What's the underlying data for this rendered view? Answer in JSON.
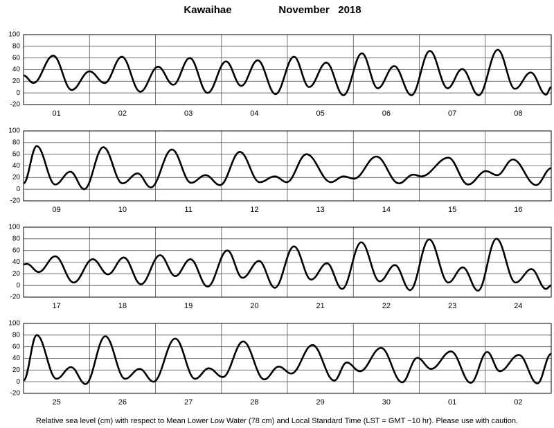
{
  "title": "Kawaihae",
  "title_date": "November   2018",
  "footnote": "Relative sea level (cm) with respect to Mean Lower Low Water (78 cm) and Local Standard Time (LST = GMT −10 hr). Please use with caution.",
  "chart_data": [
    {
      "type": "line",
      "categories": [
        "01",
        "02",
        "03",
        "04",
        "05",
        "06",
        "07",
        "08"
      ],
      "x": [
        0,
        0.15,
        0.45,
        0.73,
        1.0,
        1.23,
        1.49,
        1.77,
        2.04,
        2.27,
        2.52,
        2.79,
        3.07,
        3.3,
        3.55,
        3.82,
        4.1,
        4.33,
        4.59,
        4.85,
        5.13,
        5.37,
        5.62,
        5.88,
        6.16,
        6.43,
        6.65,
        6.9,
        7.19,
        7.45,
        7.69,
        7.92,
        8.0
      ],
      "series": [
        {
          "color": "#000000",
          "values": [
            30,
            17,
            64,
            5,
            37,
            17,
            62,
            2,
            45,
            14,
            60,
            0,
            54,
            12,
            56,
            -2,
            62,
            10,
            52,
            -4,
            68,
            8,
            46,
            -4,
            72,
            8,
            41,
            -4,
            74,
            7,
            35,
            -3,
            10
          ]
        }
      ],
      "xlim": [
        0,
        8
      ],
      "ylim": [
        -20,
        100
      ],
      "yticks": [
        -20,
        0,
        20,
        40,
        60,
        80,
        100
      ],
      "grid": true
    },
    {
      "type": "line",
      "categories": [
        "09",
        "10",
        "11",
        "12",
        "13",
        "14",
        "15",
        "16"
      ],
      "x": [
        0,
        0.2,
        0.48,
        0.71,
        0.92,
        1.21,
        1.5,
        1.73,
        1.93,
        2.25,
        2.54,
        2.76,
        2.98,
        3.28,
        3.58,
        3.81,
        3.99,
        4.29,
        4.66,
        4.85,
        5.01,
        5.35,
        5.69,
        5.91,
        6.03,
        6.44,
        6.74,
        7.01,
        7.18,
        7.42,
        7.77,
        8.0
      ],
      "series": [
        {
          "color": "#000000",
          "values": [
            10,
            74,
            8,
            30,
            0,
            72,
            10,
            27,
            3,
            68,
            11,
            24,
            7,
            64,
            12,
            22,
            12,
            60,
            12,
            22,
            18,
            56,
            10,
            25,
            22,
            54,
            8,
            31,
            24,
            51,
            7,
            36
          ]
        }
      ],
      "xlim": [
        0,
        8
      ],
      "ylim": [
        -20,
        100
      ],
      "yticks": [
        -20,
        0,
        20,
        40,
        60,
        80,
        100
      ],
      "grid": true
    },
    {
      "type": "line",
      "categories": [
        "17",
        "18",
        "19",
        "20",
        "21",
        "22",
        "23",
        "24"
      ],
      "x": [
        0,
        0.05,
        0.23,
        0.48,
        0.76,
        1.05,
        1.28,
        1.52,
        1.78,
        2.07,
        2.3,
        2.53,
        2.79,
        3.09,
        3.32,
        3.57,
        3.81,
        4.1,
        4.36,
        4.6,
        4.83,
        5.12,
        5.4,
        5.63,
        5.86,
        6.15,
        6.44,
        6.66,
        6.89,
        7.17,
        7.46,
        7.7,
        7.92,
        8.0
      ],
      "series": [
        {
          "color": "#000000",
          "values": [
            36,
            37,
            23,
            50,
            5,
            45,
            19,
            48,
            2,
            52,
            16,
            45,
            -2,
            60,
            13,
            42,
            -4,
            67,
            10,
            38,
            -6,
            74,
            7,
            35,
            -8,
            79,
            5,
            31,
            -9,
            80,
            5,
            28,
            -6,
            0
          ]
        }
      ],
      "xlim": [
        0,
        8
      ],
      "ylim": [
        -20,
        100
      ],
      "yticks": [
        -20,
        0,
        20,
        40,
        60,
        80,
        100
      ],
      "grid": true
    },
    {
      "type": "line",
      "categories": [
        "25",
        "26",
        "27",
        "28",
        "29",
        "30",
        "01",
        "02"
      ],
      "x": [
        0,
        0.2,
        0.5,
        0.72,
        0.94,
        1.24,
        1.54,
        1.76,
        1.97,
        2.3,
        2.6,
        2.81,
        3.02,
        3.33,
        3.65,
        3.87,
        4.06,
        4.38,
        4.71,
        4.9,
        5.1,
        5.42,
        5.74,
        5.97,
        6.18,
        6.48,
        6.78,
        7.03,
        7.22,
        7.51,
        7.79,
        8.0
      ],
      "series": [
        {
          "color": "#000000",
          "values": [
            2,
            80,
            5,
            25,
            -4,
            78,
            5,
            22,
            0,
            74,
            5,
            23,
            8,
            69,
            4,
            26,
            14,
            63,
            2,
            33,
            18,
            58,
            -1,
            41,
            22,
            52,
            -2,
            51,
            18,
            46,
            -3,
            48
          ]
        }
      ],
      "xlim": [
        0,
        8
      ],
      "ylim": [
        -20,
        100
      ],
      "yticks": [
        -20,
        0,
        20,
        40,
        60,
        80,
        100
      ],
      "grid": true
    }
  ]
}
